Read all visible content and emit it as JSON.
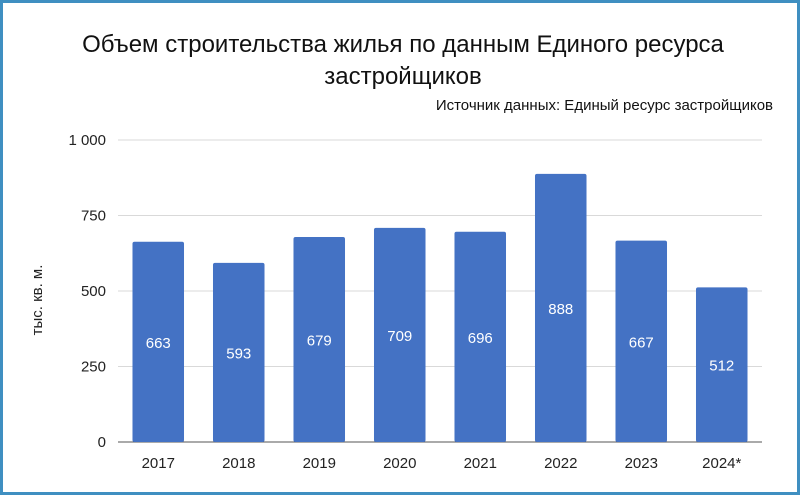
{
  "chart_data": {
    "type": "bar",
    "title": "Объем строительства жилья по данным Единого ресурса застройщиков",
    "subtitle": "Источник данных: Единый ресурс застройщиков",
    "xlabel": "",
    "ylabel": "тыс. кв. м.",
    "categories": [
      "2017",
      "2018",
      "2019",
      "2020",
      "2021",
      "2022",
      "2023",
      "2024*"
    ],
    "values": [
      663,
      593,
      679,
      709,
      696,
      888,
      667,
      512
    ],
    "data_labels": [
      "663",
      "593",
      "679",
      "709",
      "696",
      "888",
      "667",
      "512"
    ],
    "ylim": [
      0,
      1000
    ],
    "yticks": [
      0,
      250,
      500,
      750,
      1000
    ],
    "ytick_labels": [
      "0",
      "250",
      "500",
      "750",
      "1 000"
    ],
    "grid": true,
    "legend": "none",
    "colors": {
      "bar": "#4472c4",
      "grid": "#d9d9d9",
      "frame": "#3f8fc1",
      "label": "#ffffff"
    }
  }
}
